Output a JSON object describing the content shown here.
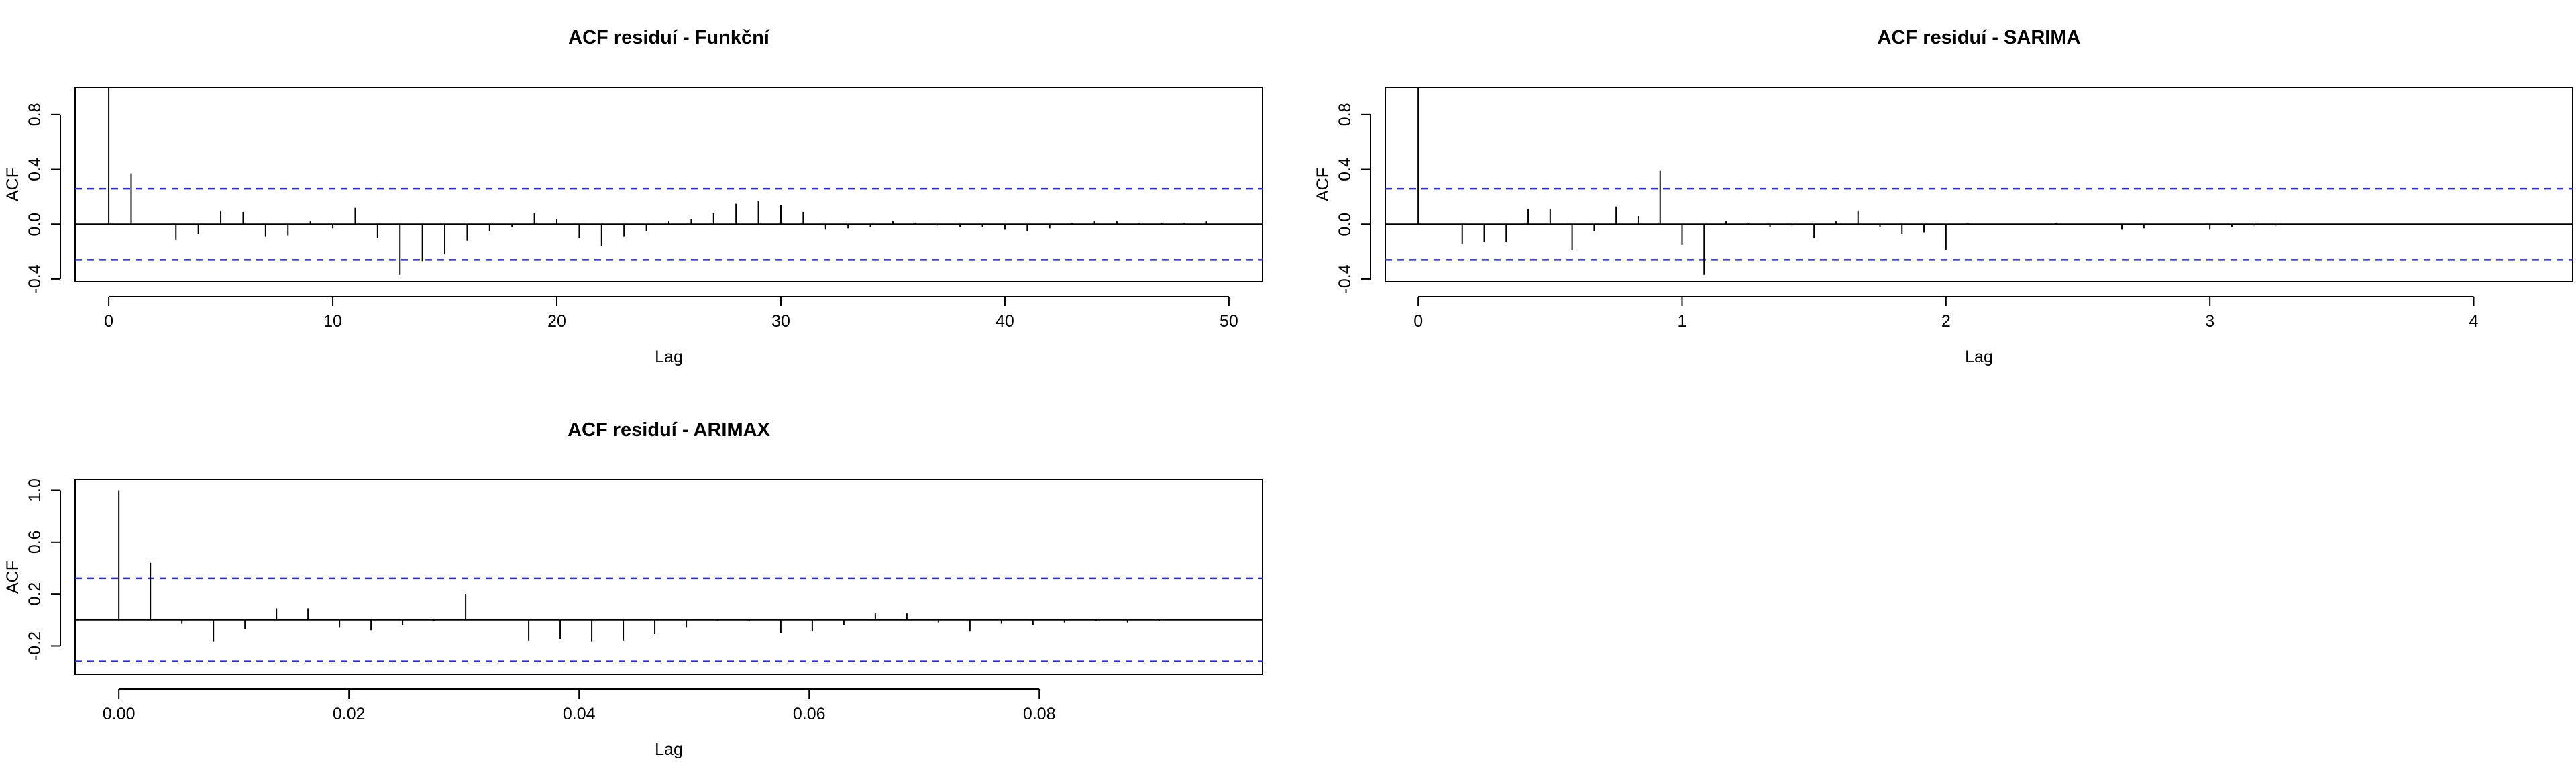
{
  "chart_data": [
    {
      "type": "bar",
      "title": "ACF residuí - Funkční",
      "xlabel": "Lag",
      "ylabel": "ACF",
      "xlim": [
        -1.5,
        51.5
      ],
      "ylim": [
        -0.42,
        1.0
      ],
      "xticks": [
        0,
        10,
        20,
        30,
        40,
        50
      ],
      "xtick_labels": [
        "0",
        "10",
        "20",
        "30",
        "40",
        "50"
      ],
      "yticks": [
        -0.4,
        0.0,
        0.4,
        0.8
      ],
      "ytick_labels": [
        "-0.4",
        "0.0",
        "0.4",
        "0.8"
      ],
      "ci": 0.26,
      "x": [
        0,
        1,
        2,
        3,
        4,
        5,
        6,
        7,
        8,
        9,
        10,
        11,
        12,
        13,
        14,
        15,
        16,
        17,
        18,
        19,
        20,
        21,
        22,
        23,
        24,
        25,
        26,
        27,
        28,
        29,
        30,
        31,
        32,
        33,
        34,
        35,
        36,
        37,
        38,
        39,
        40,
        41,
        42,
        43,
        44,
        45,
        46,
        47,
        48,
        49
      ],
      "values": [
        1.0,
        0.37,
        0.0,
        -0.11,
        -0.07,
        0.1,
        0.09,
        -0.09,
        -0.08,
        0.02,
        -0.03,
        0.12,
        -0.1,
        -0.37,
        -0.27,
        -0.22,
        -0.12,
        -0.05,
        -0.02,
        0.08,
        0.04,
        -0.1,
        -0.16,
        -0.09,
        -0.05,
        0.02,
        0.04,
        0.08,
        0.15,
        0.17,
        0.14,
        0.09,
        -0.04,
        -0.03,
        -0.02,
        0.02,
        0.01,
        -0.01,
        -0.02,
        -0.02,
        -0.04,
        -0.05,
        -0.03,
        0.01,
        0.02,
        0.02,
        0.01,
        0.01,
        0.01,
        0.02
      ]
    },
    {
      "type": "bar",
      "title": "ACF residuí - SARIMA",
      "xlabel": "Lag",
      "ylabel": "ACF",
      "xlim": [
        -0.125,
        4.375
      ],
      "ylim": [
        -0.42,
        1.0
      ],
      "xticks": [
        0,
        1,
        2,
        3,
        4
      ],
      "xtick_labels": [
        "0",
        "1",
        "2",
        "3",
        "4"
      ],
      "yticks": [
        -0.4,
        0.0,
        0.4,
        0.8
      ],
      "ytick_labels": [
        "-0.4",
        "0.0",
        "0.4",
        "0.8"
      ],
      "ci": 0.26,
      "x": [
        0,
        0.0833,
        0.1667,
        0.25,
        0.3333,
        0.4167,
        0.5,
        0.5833,
        0.6667,
        0.75,
        0.8333,
        0.9167,
        1.0,
        1.0833,
        1.1667,
        1.25,
        1.3333,
        1.4167,
        1.5,
        1.5833,
        1.6667,
        1.75,
        1.8333,
        1.9167,
        2.0,
        2.0833,
        2.1667,
        2.25,
        2.3333,
        2.4167,
        2.5,
        2.5833,
        2.6667,
        2.75,
        2.8333,
        2.9167,
        3.0,
        3.0833,
        3.1667,
        3.25,
        3.3333,
        3.4167,
        3.5,
        3.5833,
        3.6667,
        3.75,
        3.8333,
        3.9167,
        4.0,
        4.0833
      ],
      "values": [
        1.0,
        0.0,
        -0.14,
        -0.13,
        -0.13,
        0.11,
        0.11,
        -0.19,
        -0.05,
        0.13,
        0.06,
        0.39,
        -0.15,
        -0.37,
        0.02,
        0.01,
        -0.02,
        -0.01,
        -0.1,
        0.02,
        0.1,
        -0.02,
        -0.07,
        -0.06,
        -0.19,
        0.01,
        0.0,
        0.0,
        0.0,
        0.01,
        0.0,
        0.0,
        -0.04,
        -0.03,
        0.0,
        0.0,
        -0.04,
        -0.02,
        -0.01,
        -0.01,
        0.0,
        0.0,
        0.0,
        0.0,
        0.0,
        0.0,
        0.0,
        0.0,
        0.0,
        0.0
      ]
    },
    {
      "type": "bar",
      "title": "ACF residuí - ARIMAX",
      "xlabel": "Lag",
      "ylabel": "ACF",
      "xlim": [
        -0.0038,
        0.0994
      ],
      "ylim": [
        -0.42,
        1.08
      ],
      "xticks": [
        0.0,
        0.02,
        0.04,
        0.06,
        0.08
      ],
      "xtick_labels": [
        "0.00",
        "0.02",
        "0.04",
        "0.06",
        "0.08"
      ],
      "yticks": [
        -0.2,
        0.2,
        0.6,
        1.0
      ],
      "ytick_labels": [
        "-0.2",
        "0.2",
        "0.6",
        "1.0"
      ],
      "ci": 0.32,
      "x": [
        0.0,
        0.00274,
        0.00548,
        0.00822,
        0.01096,
        0.0137,
        0.01644,
        0.01918,
        0.02192,
        0.02466,
        0.0274,
        0.03014,
        0.03288,
        0.03562,
        0.03836,
        0.0411,
        0.04384,
        0.04658,
        0.04932,
        0.05205,
        0.05479,
        0.05753,
        0.06027,
        0.06301,
        0.06575,
        0.06849,
        0.07123,
        0.07397,
        0.07671,
        0.07945,
        0.08219,
        0.08493,
        0.08767,
        0.09041
      ],
      "values": [
        1.0,
        0.44,
        -0.03,
        -0.17,
        -0.07,
        0.09,
        0.09,
        -0.06,
        -0.08,
        -0.04,
        -0.01,
        0.2,
        0.0,
        -0.16,
        -0.15,
        -0.17,
        -0.16,
        -0.11,
        -0.06,
        -0.01,
        -0.01,
        -0.1,
        -0.09,
        -0.04,
        0.05,
        0.05,
        -0.02,
        -0.09,
        -0.03,
        -0.04,
        -0.02,
        -0.01,
        -0.02,
        -0.01
      ]
    }
  ]
}
